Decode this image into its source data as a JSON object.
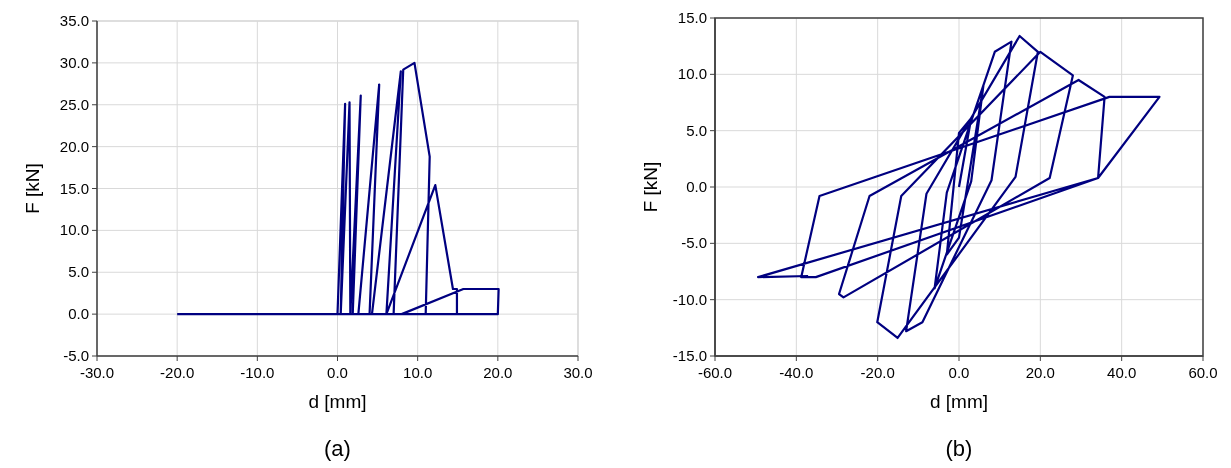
{
  "chart_data": [
    {
      "type": "line",
      "xlabel": "d [mm]",
      "ylabel": "F [kN]",
      "annotations": [
        "(a)"
      ],
      "grid": true,
      "line_style": "solid",
      "xlim": [
        -30,
        30
      ],
      "ylim": [
        -5,
        35
      ],
      "xticks": [
        {
          "value": -30,
          "label": "-30.0"
        },
        {
          "value": -20,
          "label": "-20.0"
        },
        {
          "value": -10,
          "label": "-10.0"
        },
        {
          "value": 0,
          "label": "0.0"
        },
        {
          "value": 10,
          "label": "10.0"
        },
        {
          "value": 20,
          "label": "20.0"
        },
        {
          "value": 30,
          "label": "30.0"
        }
      ],
      "yticks": [
        {
          "value": -5,
          "label": "-5.0"
        },
        {
          "value": 0,
          "label": "0.0"
        },
        {
          "value": 5,
          "label": "5.0"
        },
        {
          "value": 10,
          "label": "10.0"
        },
        {
          "value": 15,
          "label": "15.0"
        },
        {
          "value": 20,
          "label": "20.0"
        },
        {
          "value": 25,
          "label": "25.0"
        },
        {
          "value": 30,
          "label": "30.0"
        },
        {
          "value": 35,
          "label": "35.0"
        }
      ],
      "series": [
        {
          "color": "#000080",
          "x": [
            -20,
            0,
            0.95,
            0.4,
            1.5,
            1.6,
            2.9,
            1.9,
            2.6,
            5.2,
            4.0,
            4.3,
            7.9,
            6.1,
            7.0,
            8.2,
            9.6,
            11.5,
            11.0,
            6.1,
            12.2,
            14.4,
            14.9,
            14.9,
            8.0,
            15.7,
            20.1,
            20.0,
            -15
          ],
          "values": [
            0,
            0,
            25.1,
            0,
            25.3,
            0,
            26.1,
            0,
            0,
            27.4,
            0,
            0,
            29.0,
            0,
            0,
            29.2,
            30.0,
            18.8,
            0,
            0,
            15.4,
            3.0,
            3.0,
            0,
            0,
            3.0,
            3.0,
            0,
            0
          ]
        }
      ]
    },
    {
      "type": "line",
      "xlabel": "d [mm]",
      "ylabel": "F [kN]",
      "annotations": [
        "(b)"
      ],
      "grid": true,
      "line_style": "solid",
      "xlim": [
        -60,
        60
      ],
      "ylim": [
        -15,
        15
      ],
      "xticks": [
        {
          "value": -60,
          "label": "-60.0"
        },
        {
          "value": -40,
          "label": "-40.0"
        },
        {
          "value": -20,
          "label": "-20.0"
        },
        {
          "value": 0,
          "label": "0.0"
        },
        {
          "value": 20,
          "label": "20.0"
        },
        {
          "value": 40,
          "label": "40.0"
        },
        {
          "value": 60,
          "label": "60.0"
        }
      ],
      "yticks": [
        {
          "value": -15,
          "label": "-15.0"
        },
        {
          "value": -10,
          "label": "-10.0"
        },
        {
          "value": -5,
          "label": "-5.0"
        },
        {
          "value": 0,
          "label": "0.0"
        },
        {
          "value": 5,
          "label": "5.0"
        },
        {
          "value": 10,
          "label": "10.0"
        },
        {
          "value": 15,
          "label": "15.0"
        }
      ],
      "series": [
        {
          "color": "#000080",
          "x": [
            0,
            3,
            0,
            -3,
            0,
            6,
            3,
            -6,
            -3,
            8.8,
            12.9,
            8,
            -9,
            -13.0,
            -8,
            14.9,
            19.4,
            13.9,
            -15.1,
            -20.1,
            -14.2,
            20.0,
            28.0,
            22.3,
            -28.4,
            -29.5,
            -22.0,
            29.4,
            35.8,
            34.2,
            -35.2,
            -38.8,
            -34.3,
            37.0,
            49.3,
            34.2,
            -49.4,
            -37.1
          ],
          "values": [
            0,
            6.1,
            4.8,
            -6,
            -4.5,
            9,
            0.5,
            -9,
            -0.5,
            12.0,
            12.9,
            0.6,
            -12.0,
            -12.8,
            -0.6,
            13.4,
            12.0,
            0.9,
            -13.4,
            -12.0,
            -0.8,
            12.0,
            9.9,
            0.8,
            -9.8,
            -9.5,
            -0.8,
            9.5,
            8.0,
            0.8,
            -8.0,
            -8.0,
            -0.8,
            8.0,
            8.0,
            0.8,
            -8.0,
            -7.9
          ]
        }
      ]
    }
  ]
}
